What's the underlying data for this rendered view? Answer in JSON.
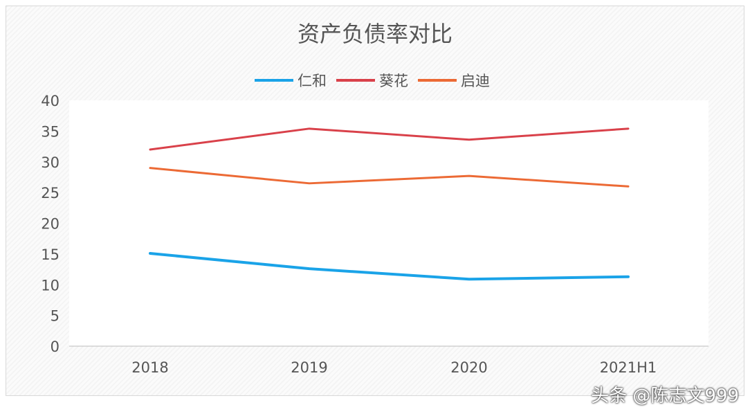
{
  "chart_data": {
    "type": "line",
    "title": "资产负债率对比",
    "categories": [
      "2018",
      "2019",
      "2020",
      "2021H1"
    ],
    "series": [
      {
        "name": "仁和",
        "color": "#1aa3e8",
        "values": [
          15.1,
          12.6,
          10.9,
          11.3
        ]
      },
      {
        "name": "葵花",
        "color": "#d9414a",
        "values": [
          32.0,
          35.4,
          33.6,
          35.4
        ]
      },
      {
        "name": "启迪",
        "color": "#ec6a35",
        "values": [
          29.0,
          26.5,
          27.7,
          26.0
        ]
      }
    ],
    "ylim": [
      0,
      40
    ],
    "yticks": [
      0,
      5,
      10,
      15,
      20,
      25,
      30,
      35,
      40
    ],
    "legend_position": "top",
    "grid": false
  },
  "watermark": "头条 @陈志文999"
}
